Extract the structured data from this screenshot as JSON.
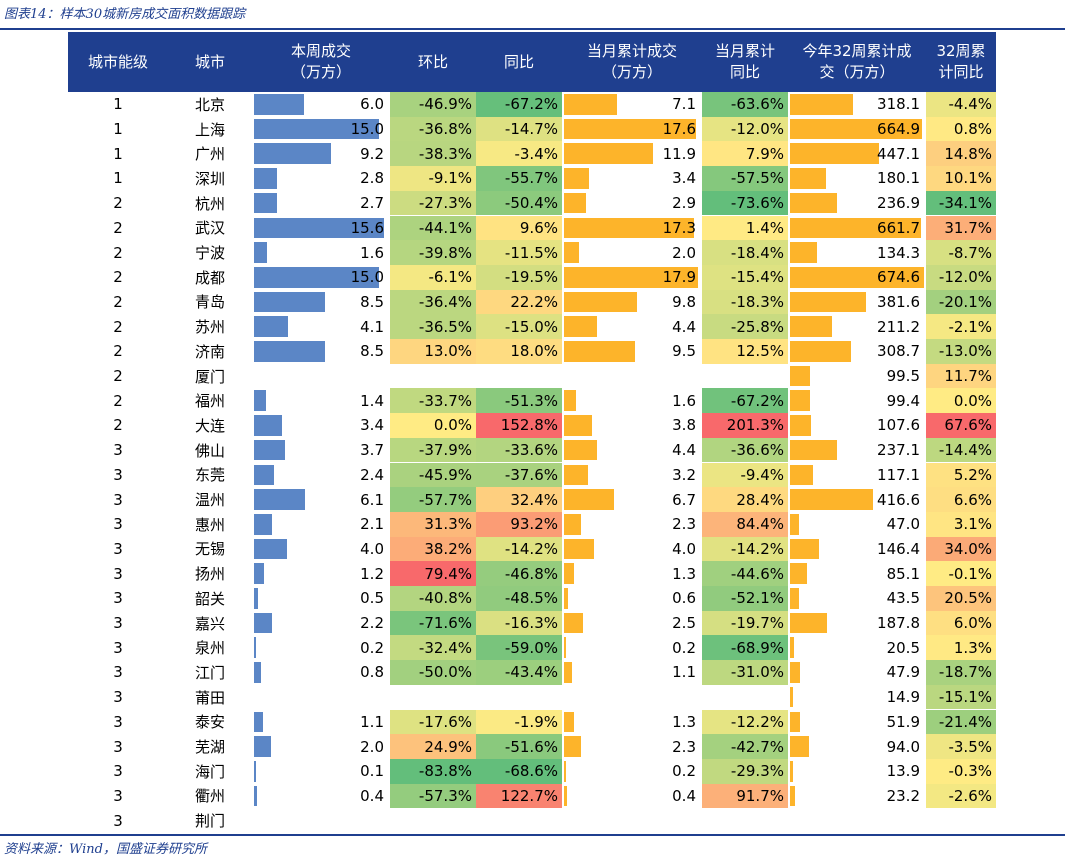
{
  "figure_title": "图表14：样本30城新房成交面积数据跟踪",
  "source_note": "资料来源：Wind，国盛证券研究所",
  "headers": {
    "tier": "城市能级",
    "city": "城市",
    "week_area_1": "本周成交",
    "week_area_2": "（万方）",
    "week_mom": "环比",
    "week_yoy": "同比",
    "month_area_1": "当月累计成交",
    "month_area_2": "（万方）",
    "month_yoy_1": "当月累计",
    "month_yoy_2": "同比",
    "ytd_area_1": "今年32周累计成",
    "ytd_area_2": "交（万方）",
    "ytd_yoy_1": "32周累",
    "ytd_yoy_2": "计同比"
  },
  "colors": {
    "header_bg": "#1f3f8f",
    "bar_blue": "#5b86c6",
    "bar_orange": "#fdb42a",
    "scale_low": "#63be7b",
    "scale_mid": "#ffeb84",
    "scale_high": "#f8696b"
  },
  "rows": [
    {
      "tier": "1",
      "city": "北京",
      "week_area": "6.0",
      "week_mom": "-46.9%",
      "week_yoy": "-67.2%",
      "month_area": "7.1",
      "month_yoy": "-63.6%",
      "ytd_area": "318.1",
      "ytd_yoy": "-4.4%"
    },
    {
      "tier": "1",
      "city": "上海",
      "week_area": "15.0",
      "week_mom": "-36.8%",
      "week_yoy": "-14.7%",
      "month_area": "17.6",
      "month_yoy": "-12.0%",
      "ytd_area": "664.9",
      "ytd_yoy": "0.8%"
    },
    {
      "tier": "1",
      "city": "广州",
      "week_area": "9.2",
      "week_mom": "-38.3%",
      "week_yoy": "-3.4%",
      "month_area": "11.9",
      "month_yoy": "7.9%",
      "ytd_area": "447.1",
      "ytd_yoy": "14.8%"
    },
    {
      "tier": "1",
      "city": "深圳",
      "week_area": "2.8",
      "week_mom": "-9.1%",
      "week_yoy": "-55.7%",
      "month_area": "3.4",
      "month_yoy": "-57.5%",
      "ytd_area": "180.1",
      "ytd_yoy": "10.1%"
    },
    {
      "tier": "2",
      "city": "杭州",
      "week_area": "2.7",
      "week_mom": "-27.3%",
      "week_yoy": "-50.4%",
      "month_area": "2.9",
      "month_yoy": "-73.6%",
      "ytd_area": "236.9",
      "ytd_yoy": "-34.1%"
    },
    {
      "tier": "2",
      "city": "武汉",
      "week_area": "15.6",
      "week_mom": "-44.1%",
      "week_yoy": "9.6%",
      "month_area": "17.3",
      "month_yoy": "1.4%",
      "ytd_area": "661.7",
      "ytd_yoy": "31.7%"
    },
    {
      "tier": "2",
      "city": "宁波",
      "week_area": "1.6",
      "week_mom": "-39.8%",
      "week_yoy": "-11.5%",
      "month_area": "2.0",
      "month_yoy": "-18.4%",
      "ytd_area": "134.3",
      "ytd_yoy": "-8.7%"
    },
    {
      "tier": "2",
      "city": "成都",
      "week_area": "15.0",
      "week_mom": "-6.1%",
      "week_yoy": "-19.5%",
      "month_area": "17.9",
      "month_yoy": "-15.4%",
      "ytd_area": "674.6",
      "ytd_yoy": "-12.0%"
    },
    {
      "tier": "2",
      "city": "青岛",
      "week_area": "8.5",
      "week_mom": "-36.4%",
      "week_yoy": "22.2%",
      "month_area": "9.8",
      "month_yoy": "-18.3%",
      "ytd_area": "381.6",
      "ytd_yoy": "-20.1%"
    },
    {
      "tier": "2",
      "city": "苏州",
      "week_area": "4.1",
      "week_mom": "-36.5%",
      "week_yoy": "-15.0%",
      "month_area": "4.4",
      "month_yoy": "-25.8%",
      "ytd_area": "211.2",
      "ytd_yoy": "-2.1%"
    },
    {
      "tier": "2",
      "city": "济南",
      "week_area": "8.5",
      "week_mom": "13.0%",
      "week_yoy": "18.0%",
      "month_area": "9.5",
      "month_yoy": "12.5%",
      "ytd_area": "308.7",
      "ytd_yoy": "-13.0%"
    },
    {
      "tier": "2",
      "city": "厦门",
      "week_area": "",
      "week_mom": "",
      "week_yoy": "",
      "month_area": "",
      "month_yoy": "",
      "ytd_area": "99.5",
      "ytd_yoy": "11.7%"
    },
    {
      "tier": "2",
      "city": "福州",
      "week_area": "1.4",
      "week_mom": "-33.7%",
      "week_yoy": "-51.3%",
      "month_area": "1.6",
      "month_yoy": "-67.2%",
      "ytd_area": "99.4",
      "ytd_yoy": "0.0%"
    },
    {
      "tier": "2",
      "city": "大连",
      "week_area": "3.4",
      "week_mom": "0.0%",
      "week_yoy": "152.8%",
      "month_area": "3.8",
      "month_yoy": "201.3%",
      "ytd_area": "107.6",
      "ytd_yoy": "67.6%"
    },
    {
      "tier": "3",
      "city": "佛山",
      "week_area": "3.7",
      "week_mom": "-37.9%",
      "week_yoy": "-33.6%",
      "month_area": "4.4",
      "month_yoy": "-36.6%",
      "ytd_area": "237.1",
      "ytd_yoy": "-14.4%"
    },
    {
      "tier": "3",
      "city": "东莞",
      "week_area": "2.4",
      "week_mom": "-45.9%",
      "week_yoy": "-37.6%",
      "month_area": "3.2",
      "month_yoy": "-9.4%",
      "ytd_area": "117.1",
      "ytd_yoy": "5.2%"
    },
    {
      "tier": "3",
      "city": "温州",
      "week_area": "6.1",
      "week_mom": "-57.7%",
      "week_yoy": "32.4%",
      "month_area": "6.7",
      "month_yoy": "28.4%",
      "ytd_area": "416.6",
      "ytd_yoy": "6.6%"
    },
    {
      "tier": "3",
      "city": "惠州",
      "week_area": "2.1",
      "week_mom": "31.3%",
      "week_yoy": "93.2%",
      "month_area": "2.3",
      "month_yoy": "84.4%",
      "ytd_area": "47.0",
      "ytd_yoy": "3.1%"
    },
    {
      "tier": "3",
      "city": "无锡",
      "week_area": "4.0",
      "week_mom": "38.2%",
      "week_yoy": "-14.2%",
      "month_area": "4.0",
      "month_yoy": "-14.2%",
      "ytd_area": "146.4",
      "ytd_yoy": "34.0%"
    },
    {
      "tier": "3",
      "city": "扬州",
      "week_area": "1.2",
      "week_mom": "79.4%",
      "week_yoy": "-46.8%",
      "month_area": "1.3",
      "month_yoy": "-44.6%",
      "ytd_area": "85.1",
      "ytd_yoy": "-0.1%"
    },
    {
      "tier": "3",
      "city": "韶关",
      "week_area": "0.5",
      "week_mom": "-40.8%",
      "week_yoy": "-48.5%",
      "month_area": "0.6",
      "month_yoy": "-52.1%",
      "ytd_area": "43.5",
      "ytd_yoy": "20.5%"
    },
    {
      "tier": "3",
      "city": "嘉兴",
      "week_area": "2.2",
      "week_mom": "-71.6%",
      "week_yoy": "-16.3%",
      "month_area": "2.5",
      "month_yoy": "-19.7%",
      "ytd_area": "187.8",
      "ytd_yoy": "6.0%"
    },
    {
      "tier": "3",
      "city": "泉州",
      "week_area": "0.2",
      "week_mom": "-32.4%",
      "week_yoy": "-59.0%",
      "month_area": "0.2",
      "month_yoy": "-68.9%",
      "ytd_area": "20.5",
      "ytd_yoy": "1.3%"
    },
    {
      "tier": "3",
      "city": "江门",
      "week_area": "0.8",
      "week_mom": "-50.0%",
      "week_yoy": "-43.4%",
      "month_area": "1.1",
      "month_yoy": "-31.0%",
      "ytd_area": "47.9",
      "ytd_yoy": "-18.7%"
    },
    {
      "tier": "3",
      "city": "莆田",
      "week_area": "",
      "week_mom": "",
      "week_yoy": "",
      "month_area": "",
      "month_yoy": "",
      "ytd_area": "14.9",
      "ytd_yoy": "-15.1%"
    },
    {
      "tier": "3",
      "city": "泰安",
      "week_area": "1.1",
      "week_mom": "-17.6%",
      "week_yoy": "-1.9%",
      "month_area": "1.3",
      "month_yoy": "-12.2%",
      "ytd_area": "51.9",
      "ytd_yoy": "-21.4%"
    },
    {
      "tier": "3",
      "city": "芜湖",
      "week_area": "2.0",
      "week_mom": "24.9%",
      "week_yoy": "-51.6%",
      "month_area": "2.3",
      "month_yoy": "-42.7%",
      "ytd_area": "94.0",
      "ytd_yoy": "-3.5%"
    },
    {
      "tier": "3",
      "city": "海门",
      "week_area": "0.1",
      "week_mom": "-83.8%",
      "week_yoy": "-68.6%",
      "month_area": "0.2",
      "month_yoy": "-29.3%",
      "ytd_area": "13.9",
      "ytd_yoy": "-0.3%"
    },
    {
      "tier": "3",
      "city": "衢州",
      "week_area": "0.4",
      "week_mom": "-57.3%",
      "week_yoy": "122.7%",
      "month_area": "0.4",
      "month_yoy": "91.7%",
      "ytd_area": "23.2",
      "ytd_yoy": "-2.6%"
    },
    {
      "tier": "3",
      "city": "荆门",
      "week_area": "",
      "week_mom": "",
      "week_yoy": "",
      "month_area": "",
      "month_yoy": "",
      "ytd_area": "",
      "ytd_yoy": ""
    }
  ]
}
